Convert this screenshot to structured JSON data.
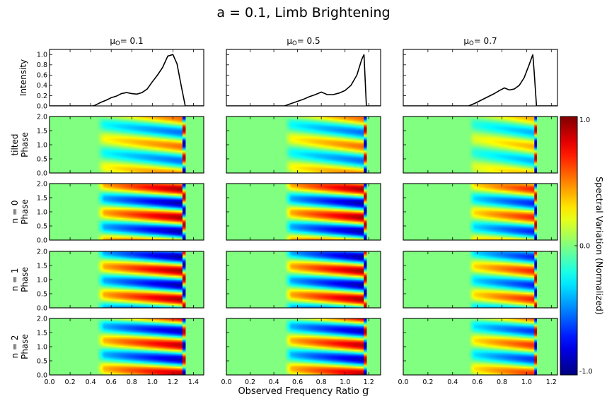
{
  "title": "a = 0.1, Limb Brightening",
  "columns": [
    {
      "label": "μ",
      "sub": "O",
      "value": "= 0.1",
      "xlim": [
        0.0,
        1.5
      ],
      "xticks": [
        "0.0",
        "0.2",
        "0.4",
        "0.6",
        "0.8",
        "1.0",
        "1.2",
        "1.4"
      ],
      "xtick_values": [
        0,
        0.2,
        0.4,
        0.6,
        0.8,
        1.0,
        1.2,
        1.4
      ]
    },
    {
      "label": "μ",
      "sub": "O",
      "value": "= 0.5",
      "xlim": [
        0.0,
        1.3
      ],
      "xticks": [
        "0.0",
        "0.2",
        "0.4",
        "0.6",
        "0.8",
        "1.0",
        "1.2"
      ],
      "xtick_values": [
        0,
        0.2,
        0.4,
        0.6,
        0.8,
        1.0,
        1.2
      ]
    },
    {
      "label": "μ",
      "sub": "O",
      "value": "= 0.7",
      "xlim": [
        0.0,
        1.25
      ],
      "xticks": [
        "0.0",
        "0.2",
        "0.4",
        "0.6",
        "0.8",
        "1.0",
        "1.2"
      ],
      "xtick_values": [
        0,
        0.2,
        0.4,
        0.6,
        0.8,
        1.0,
        1.2
      ]
    }
  ],
  "rows": [
    {
      "label": "Intensity",
      "sublabel": ""
    },
    {
      "label": "Phase",
      "sublabel": "tilted"
    },
    {
      "label": "Phase",
      "sublabel": "n = 0"
    },
    {
      "label": "Phase",
      "sublabel": "n = 1"
    },
    {
      "label": "Phase",
      "sublabel": "n = 2"
    }
  ],
  "intensity_yticks": [
    "0.0",
    "0.2",
    "0.4",
    "0.6",
    "0.8",
    "1.0"
  ],
  "phase_yticks": [
    "0.0",
    "0.5",
    "1.0",
    "1.5",
    "2.0"
  ],
  "xlabel_text": "Observed Frequency Ratio ",
  "xlabel_symbol": "g",
  "colorbar": {
    "label": "Spectral Variation (Normalized)",
    "ticks": [
      "1.0",
      "0.0",
      "-1.0"
    ],
    "colormap": "jet"
  },
  "chart_data": [
    {
      "type": "line",
      "column": "μO = 0.1",
      "ylabel": "Intensity",
      "ylim": [
        0,
        1.1
      ],
      "x": [
        0.0,
        0.42,
        0.44,
        0.46,
        0.5,
        0.55,
        0.6,
        0.65,
        0.7,
        0.75,
        0.8,
        0.85,
        0.9,
        0.95,
        1.0,
        1.05,
        1.1,
        1.15,
        1.2,
        1.24,
        1.28,
        1.32,
        1.5
      ],
      "y": [
        0.0,
        0.0,
        0.01,
        0.03,
        0.07,
        0.11,
        0.16,
        0.19,
        0.24,
        0.26,
        0.24,
        0.23,
        0.26,
        0.33,
        0.47,
        0.6,
        0.75,
        0.97,
        1.0,
        0.82,
        0.4,
        0.0,
        0.0
      ]
    },
    {
      "type": "line",
      "column": "μO = 0.5",
      "ylabel": "Intensity",
      "ylim": [
        0,
        1.1
      ],
      "x": [
        0.0,
        0.49,
        0.55,
        0.6,
        0.65,
        0.7,
        0.75,
        0.8,
        0.85,
        0.9,
        0.95,
        1.0,
        1.05,
        1.1,
        1.14,
        1.16,
        1.18,
        1.3
      ],
      "y": [
        0.0,
        0.0,
        0.05,
        0.09,
        0.13,
        0.18,
        0.22,
        0.27,
        0.22,
        0.22,
        0.25,
        0.3,
        0.4,
        0.6,
        0.9,
        1.0,
        0.0,
        0.0
      ]
    },
    {
      "type": "line",
      "column": "μO = 0.7",
      "ylabel": "Intensity",
      "ylim": [
        0,
        1.1
      ],
      "x": [
        0.0,
        0.53,
        0.58,
        0.63,
        0.68,
        0.73,
        0.78,
        0.82,
        0.86,
        0.9,
        0.94,
        0.98,
        1.02,
        1.05,
        1.06,
        1.08,
        1.25
      ],
      "y": [
        0.0,
        0.0,
        0.05,
        0.11,
        0.17,
        0.23,
        0.3,
        0.35,
        0.31,
        0.33,
        0.4,
        0.55,
        0.8,
        1.0,
        0.7,
        0.0,
        0.0
      ]
    },
    {
      "type": "heatmap",
      "panel": "tilted",
      "columns_support": [
        [
          0.46,
          1.32
        ],
        [
          0.49,
          1.18
        ],
        [
          0.53,
          1.08
        ]
      ],
      "ylim": [
        0,
        2
      ],
      "color_range": [
        -1.0,
        1.0
      ]
    },
    {
      "type": "heatmap",
      "panel": "n = 0",
      "columns_support": [
        [
          0.46,
          1.32
        ],
        [
          0.49,
          1.18
        ],
        [
          0.53,
          1.08
        ]
      ],
      "ylim": [
        0,
        2
      ],
      "color_range": [
        -1.0,
        1.0
      ]
    },
    {
      "type": "heatmap",
      "panel": "n = 1",
      "columns_support": [
        [
          0.46,
          1.32
        ],
        [
          0.49,
          1.18
        ],
        [
          0.53,
          1.08
        ]
      ],
      "ylim": [
        0,
        2
      ],
      "color_range": [
        -1.0,
        1.0
      ]
    },
    {
      "type": "heatmap",
      "panel": "n = 2",
      "columns_support": [
        [
          0.46,
          1.32
        ],
        [
          0.49,
          1.18
        ],
        [
          0.53,
          1.08
        ]
      ],
      "ylim": [
        0,
        2
      ],
      "color_range": [
        -1.0,
        1.0
      ]
    }
  ]
}
